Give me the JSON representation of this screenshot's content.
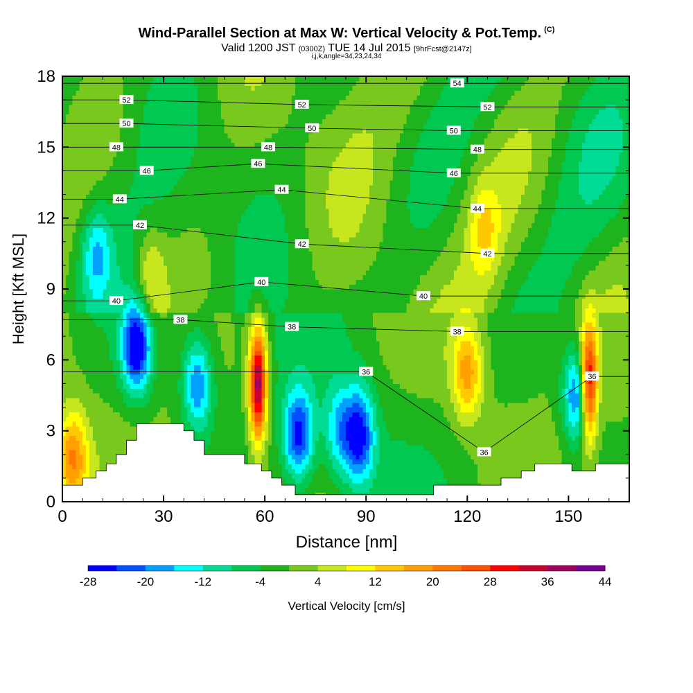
{
  "title": {
    "main": "Wind-Parallel Section at Max W: Vertical Velocity & Pot.Temp.",
    "copyright": "(C)",
    "valid_prefix": "Valid 1200 JST",
    "valid_utc": "(0300Z)",
    "valid_date": "TUE 14 Jul 2015",
    "forecast": "[9hrFcst@2147z]",
    "indices": "i,j,k,angle=34,23,24,34"
  },
  "chart_data": {
    "type": "heatmap",
    "xlabel": "Distance [nm]",
    "ylabel": "Height [Kft MSL]",
    "xlim": [
      0,
      168
    ],
    "ylim": [
      0,
      18
    ],
    "x_ticks": [
      "0",
      "30",
      "60",
      "90",
      "120",
      "150"
    ],
    "x_tick_values": [
      0,
      30,
      60,
      90,
      120,
      150
    ],
    "y_ticks": [
      "0",
      "3",
      "6",
      "9",
      "12",
      "15",
      "18"
    ],
    "y_tick_values": [
      0,
      3,
      6,
      9,
      12,
      15,
      18
    ],
    "colorbar": {
      "label": "Vertical Velocity [cm/s]",
      "tick_labels": [
        "-28",
        "-20",
        "-12",
        "-4",
        "4",
        "12",
        "20",
        "28",
        "36",
        "44"
      ],
      "levels": [
        -28,
        -24,
        -20,
        -16,
        -12,
        -8,
        -4,
        0,
        4,
        8,
        12,
        16,
        20,
        24,
        28,
        32,
        36,
        40,
        44
      ],
      "colors": [
        "#0000ff",
        "#0050ff",
        "#00a0ff",
        "#00ffff",
        "#00dc96",
        "#00c850",
        "#1eb41e",
        "#78c81e",
        "#c8e61e",
        "#ffff00",
        "#ffc800",
        "#ffa000",
        "#ff7800",
        "#ff5000",
        "#ff0000",
        "#c80030",
        "#a00060",
        "#780090"
      ]
    },
    "terrain_kft": [
      [
        0,
        0.7
      ],
      [
        6,
        0.7
      ],
      [
        6,
        1.0
      ],
      [
        10,
        1.0
      ],
      [
        10,
        1.3
      ],
      [
        13,
        1.3
      ],
      [
        13,
        1.6
      ],
      [
        16,
        1.6
      ],
      [
        16,
        2.0
      ],
      [
        19,
        2.0
      ],
      [
        19,
        2.6
      ],
      [
        22,
        2.6
      ],
      [
        22,
        3.3
      ],
      [
        36,
        3.3
      ],
      [
        36,
        3.0
      ],
      [
        39,
        3.0
      ],
      [
        39,
        2.6
      ],
      [
        42,
        2.6
      ],
      [
        42,
        2.0
      ],
      [
        54,
        2.0
      ],
      [
        54,
        1.6
      ],
      [
        59,
        1.6
      ],
      [
        59,
        1.3
      ],
      [
        62,
        1.3
      ],
      [
        62,
        1.0
      ],
      [
        65,
        1.0
      ],
      [
        65,
        0.7
      ],
      [
        69,
        0.7
      ],
      [
        69,
        0.3
      ],
      [
        110,
        0.3
      ],
      [
        110,
        0.7
      ],
      [
        130,
        0.7
      ],
      [
        130,
        1.0
      ],
      [
        136,
        1.0
      ],
      [
        136,
        1.3
      ],
      [
        140,
        1.3
      ],
      [
        140,
        1.6
      ],
      [
        151,
        1.6
      ],
      [
        151,
        1.3
      ],
      [
        158,
        1.3
      ],
      [
        158,
        1.6
      ],
      [
        168,
        1.6
      ]
    ],
    "wind_field_features": [
      {
        "x": 22,
        "z": 6.6,
        "w": -28
      },
      {
        "x": 26,
        "z": 9.5,
        "w": 10
      },
      {
        "x": 3,
        "z": 1.8,
        "w": 20
      },
      {
        "x": 40,
        "z": 5.0,
        "w": -20
      },
      {
        "x": 58,
        "z": 5.0,
        "w": 40
      },
      {
        "x": 70,
        "z": 2.8,
        "w": -24
      },
      {
        "x": 88,
        "z": 2.8,
        "w": -24
      },
      {
        "x": 82,
        "z": 3.0,
        "w": -13
      },
      {
        "x": 120,
        "z": 5.5,
        "w": 18
      },
      {
        "x": 153,
        "z": 4.5,
        "w": -24
      },
      {
        "x": 156,
        "z": 5.0,
        "w": 40
      },
      {
        "x": 10,
        "z": 10.5,
        "w": -13
      },
      {
        "x": 125,
        "z": 11.5,
        "w": 10
      }
    ],
    "theta_contours": [
      {
        "label": "36",
        "label_positions": [
          [
            90,
            5.5
          ],
          [
            125,
            2.1
          ],
          [
            157,
            5.3
          ]
        ]
      },
      {
        "label": "38",
        "label_positions": [
          [
            35,
            7.7
          ],
          [
            68,
            7.4
          ],
          [
            117,
            7.2
          ]
        ]
      },
      {
        "label": "40",
        "label_positions": [
          [
            16,
            8.5
          ],
          [
            59,
            9.3
          ],
          [
            107,
            8.7
          ]
        ]
      },
      {
        "label": "42",
        "label_positions": [
          [
            23,
            11.7
          ],
          [
            71,
            10.9
          ],
          [
            126,
            10.5
          ]
        ]
      },
      {
        "label": "44",
        "label_positions": [
          [
            17,
            12.8
          ],
          [
            65,
            13.2
          ],
          [
            123,
            12.4
          ]
        ]
      },
      {
        "label": "46",
        "label_positions": [
          [
            25,
            14.0
          ],
          [
            58,
            14.3
          ],
          [
            116,
            13.9
          ]
        ]
      },
      {
        "label": "48",
        "label_positions": [
          [
            16,
            15.0
          ],
          [
            61,
            15.0
          ],
          [
            123,
            14.9
          ]
        ]
      },
      {
        "label": "50",
        "label_positions": [
          [
            19,
            16.0
          ],
          [
            74,
            15.8
          ],
          [
            116,
            15.7
          ]
        ]
      },
      {
        "label": "52",
        "label_positions": [
          [
            19,
            17.0
          ],
          [
            71,
            16.8
          ],
          [
            126,
            16.7
          ]
        ]
      },
      {
        "label": "54",
        "label_positions": [
          [
            117,
            17.7
          ]
        ]
      }
    ]
  }
}
